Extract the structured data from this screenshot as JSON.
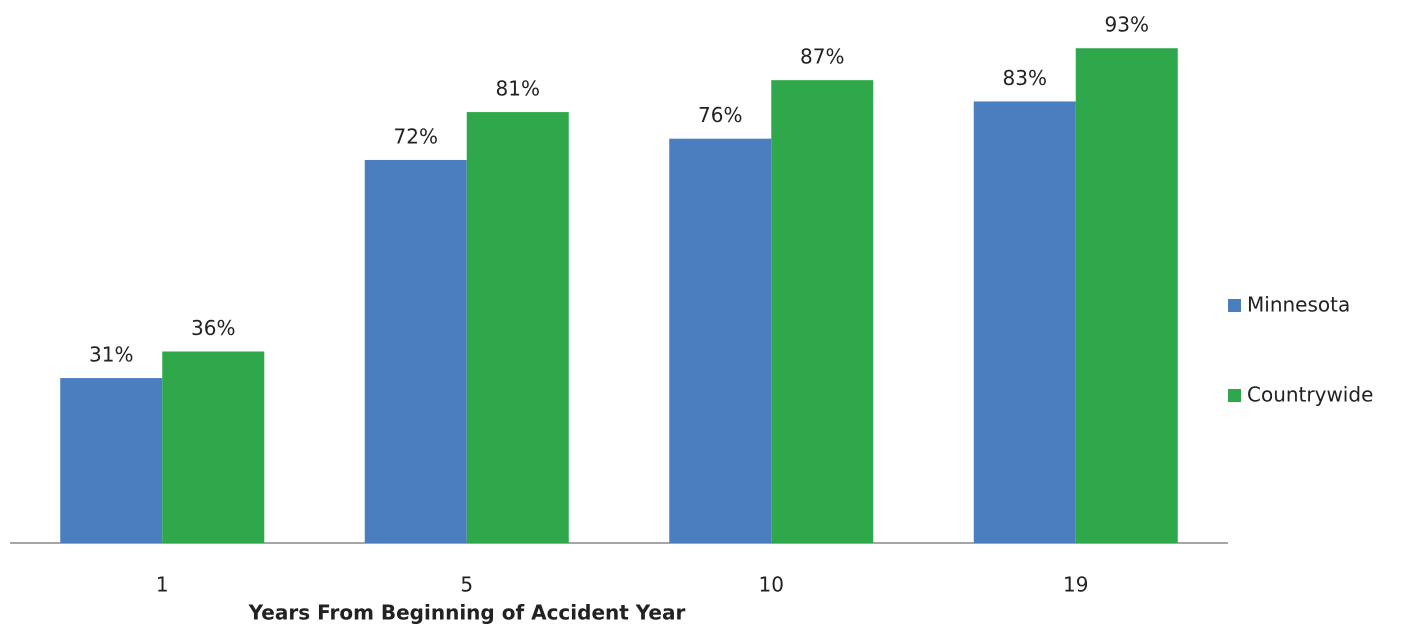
{
  "chart_data": {
    "type": "bar",
    "x_label": "Years From Beginning of Accident Year",
    "categories": [
      "1",
      "5",
      "10",
      "19"
    ],
    "series": [
      {
        "name": "Minnesota",
        "color": "#4a7ebf",
        "values": [
          31,
          72,
          76,
          83
        ],
        "value_labels": [
          "31%",
          "72%",
          "76%",
          "83%"
        ]
      },
      {
        "name": "Countrywide",
        "color": "#2ea84a",
        "values": [
          36,
          81,
          87,
          93
        ],
        "value_labels": [
          "36%",
          "81%",
          "87%",
          "93%"
        ]
      }
    ],
    "ylim": [
      0,
      100
    ],
    "legend": "right"
  }
}
